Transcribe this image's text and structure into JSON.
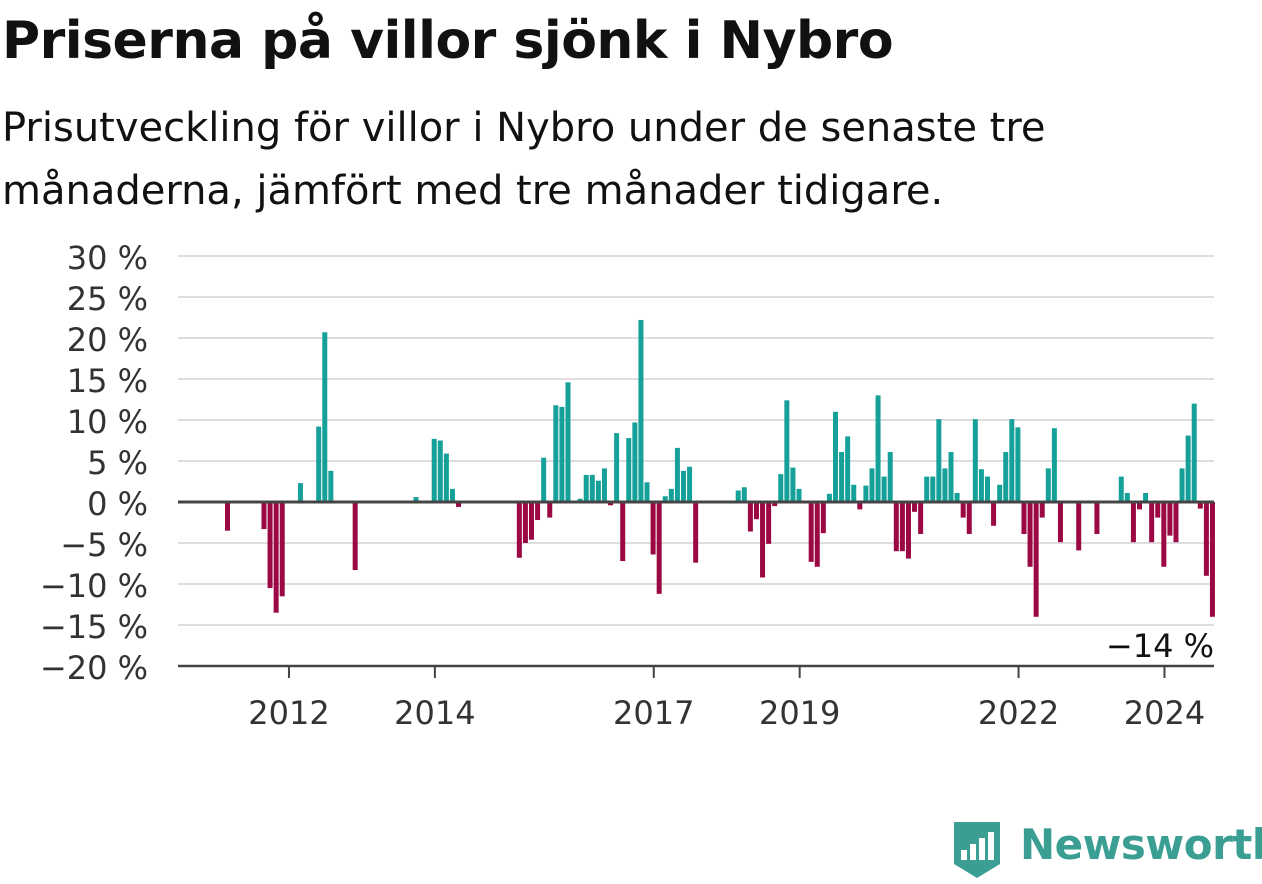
{
  "title": "Priserna på villor sjönk i Nybro",
  "subtitle": "Prisutveckling för villor i Nybro under de senaste tre månaderna, jämfört med tre månader tidigare.",
  "brand": {
    "name": "Newsworthy",
    "color": "#3a9e92"
  },
  "colors": {
    "positive": "#16a09a",
    "negative": "#9b0843",
    "grid": "#dddddd",
    "axis": "#444444"
  },
  "chart_data": {
    "type": "bar",
    "title": "Priserna på villor sjönk i Nybro",
    "ylim": [
      -20,
      30
    ],
    "yticks": [
      30,
      25,
      20,
      15,
      10,
      5,
      0,
      -5,
      -10,
      -15,
      -20
    ],
    "ytick_labels": [
      "30 %",
      "25 %",
      "20 %",
      "15 %",
      "10 %",
      "5 %",
      "0 %",
      "−5 %",
      "−10 %",
      "−15 %",
      "−20 %"
    ],
    "xticks": [
      {
        "label": "2012",
        "month_index": 12
      },
      {
        "label": "2014",
        "month_index": 36
      },
      {
        "label": "2017",
        "month_index": 72
      },
      {
        "label": "2019",
        "month_index": 96
      },
      {
        "label": "2022",
        "month_index": 132
      },
      {
        "label": "2024",
        "month_index": 156
      }
    ],
    "grid": true,
    "last_value_label": "−14 %",
    "series": [
      {
        "values": [
          -3.5,
          null,
          null,
          null,
          null,
          null,
          -3.3,
          -10.5,
          -13.5,
          -11.5,
          null,
          null,
          2.3,
          null,
          null,
          9.2,
          20.7,
          3.8,
          null,
          null,
          null,
          -8.3,
          null,
          null,
          null,
          null,
          null,
          null,
          null,
          null,
          null,
          0.6,
          null,
          null,
          7.7,
          7.5,
          5.9,
          1.6,
          -0.6,
          null,
          null,
          null,
          null,
          null,
          null,
          null,
          null,
          null,
          -6.8,
          -5.0,
          -4.6,
          -2.2,
          5.4,
          -1.9,
          11.8,
          11.6,
          14.6,
          null,
          0.4,
          3.3,
          3.3,
          2.6,
          4.1,
          -0.4,
          8.4,
          -7.2,
          7.8,
          9.7,
          22.2,
          2.4,
          -6.4,
          -11.2,
          0.7,
          1.6,
          6.6,
          3.8,
          4.3,
          -7.4,
          null,
          null,
          null,
          null,
          null,
          null,
          1.4,
          1.8,
          -3.6,
          -2.1,
          -9.2,
          -5.1,
          -0.5,
          3.4,
          12.4,
          4.2,
          1.6,
          null,
          -7.3,
          -7.9,
          -3.8,
          1.0,
          11.0,
          6.1,
          8.0,
          2.1,
          -0.9,
          2.0,
          4.1,
          13.0,
          3.1,
          6.1,
          -6.0,
          -6.0,
          -6.9,
          -1.2,
          -3.9,
          3.1,
          3.1,
          10.1,
          4.1,
          6.1,
          1.1,
          -1.9,
          -3.9,
          10.1,
          4.0,
          3.1,
          -2.9,
          2.1,
          6.1,
          10.1,
          9.1,
          -3.9,
          -7.9,
          -14.0,
          -1.9,
          4.1,
          9.0,
          -4.9,
          null,
          null,
          -5.9,
          null,
          null,
          -3.9,
          null,
          null,
          null,
          3.1,
          1.1,
          -4.9,
          -0.9,
          1.1,
          -4.9,
          -1.9,
          -7.9,
          -4.1,
          -4.9,
          4.1,
          8.1,
          12.0,
          -0.8,
          -9.0,
          -14.0
        ]
      }
    ]
  }
}
